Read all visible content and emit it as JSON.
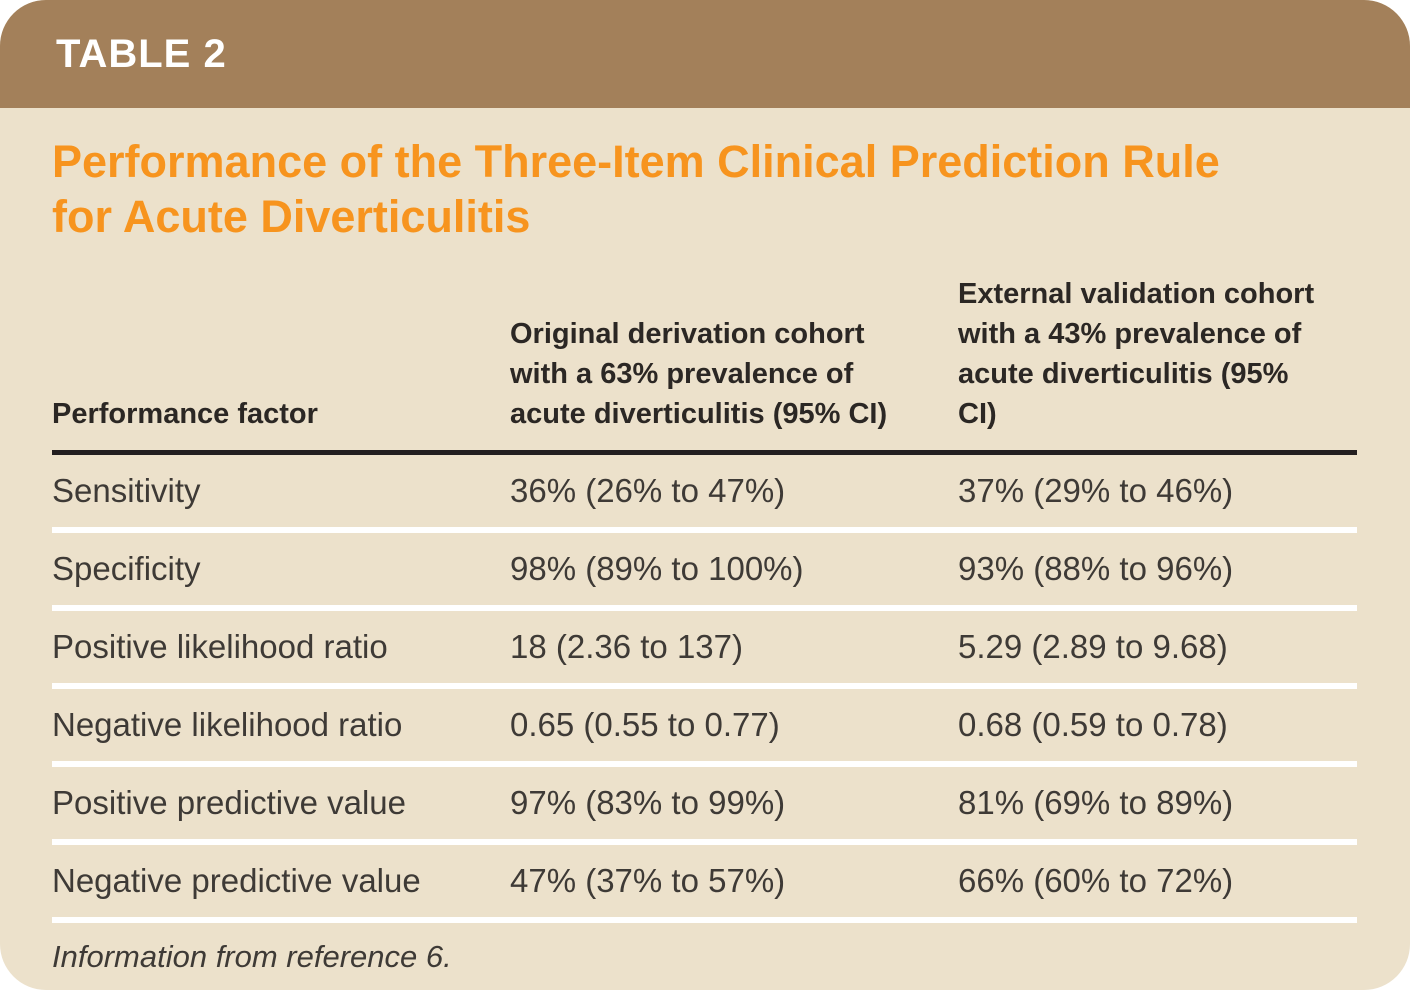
{
  "table_label": "TABLE 2",
  "title": {
    "line1": "Performance of the Three-Item Clinical Prediction Rule",
    "line2": "for Acute Diverticulitis"
  },
  "table": {
    "columns": [
      {
        "label": "Performance factor"
      },
      {
        "label": "Original derivation cohort with a 63% prevalence of acute diverticulitis (95% CI)"
      },
      {
        "label": "External validation cohort with a 43% prevalence of acute diverticulitis (95% CI)"
      }
    ],
    "rows": [
      {
        "factor": "Sensitivity",
        "derivation": "36% (26% to 47%)",
        "validation": "37% (29% to 46%)"
      },
      {
        "factor": "Specificity",
        "derivation": "98% (89% to 100%)",
        "validation": "93% (88% to 96%)"
      },
      {
        "factor": "Positive likelihood ratio",
        "derivation": "18 (2.36 to 137)",
        "validation": "5.29 (2.89 to 9.68)"
      },
      {
        "factor": "Negative likelihood ratio",
        "derivation": "0.65 (0.55 to 0.77)",
        "validation": "0.68 (0.59 to 0.78)"
      },
      {
        "factor": "Positive predictive value",
        "derivation": "97% (83% to 99%)",
        "validation": "81% (69% to 89%)"
      },
      {
        "factor": "Negative predictive value",
        "derivation": "47% (37% to 57%)",
        "validation": "66% (60% to 72%)"
      }
    ]
  },
  "footnote": "Information from reference 6.",
  "colors": {
    "header_bar": "#a3805a",
    "body_background": "#ece1cb",
    "title_accent": "#f7941e",
    "header_rule": "#231f20",
    "row_separator": "#ffffff",
    "text": "#3e3a36"
  }
}
